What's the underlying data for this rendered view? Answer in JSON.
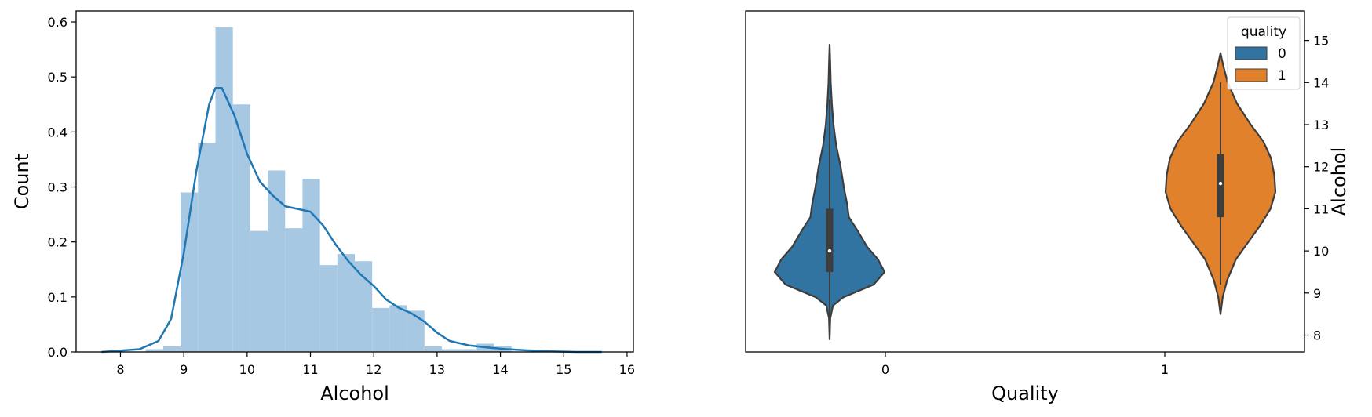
{
  "chart_data": [
    {
      "type": "histogram",
      "xlabel": "Alcohol",
      "ylabel": "Count",
      "xlim": [
        7.3,
        16.1
      ],
      "ylim": [
        0,
        0.62
      ],
      "xticks": [
        8,
        9,
        10,
        11,
        12,
        13,
        14,
        15,
        16
      ],
      "yticks": [
        0.0,
        0.1,
        0.2,
        0.3,
        0.4,
        0.5,
        0.6
      ],
      "bins": {
        "edges": [
          8.4,
          8.675,
          8.95,
          9.225,
          9.5,
          9.775,
          10.05,
          10.325,
          10.6,
          10.875,
          11.15,
          11.425,
          11.7,
          11.975,
          12.25,
          12.525,
          12.8,
          13.075,
          13.35,
          13.625,
          13.9,
          14.175
        ],
        "heights": [
          0.005,
          0.01,
          0.29,
          0.38,
          0.59,
          0.45,
          0.22,
          0.33,
          0.225,
          0.315,
          0.158,
          0.178,
          0.165,
          0.08,
          0.085,
          0.075,
          0.01,
          0.005,
          0.005,
          0.015,
          0.01
        ]
      },
      "kde": {
        "x": [
          7.7,
          8.3,
          8.6,
          8.8,
          9.0,
          9.2,
          9.4,
          9.5,
          9.6,
          9.8,
          10.0,
          10.2,
          10.4,
          10.6,
          10.8,
          11.0,
          11.2,
          11.4,
          11.6,
          11.8,
          12.0,
          12.2,
          12.4,
          12.6,
          12.8,
          13.0,
          13.2,
          13.5,
          13.8,
          14.1,
          14.4,
          14.8,
          15.2,
          15.6
        ],
        "y": [
          0.0,
          0.005,
          0.02,
          0.06,
          0.18,
          0.33,
          0.45,
          0.48,
          0.48,
          0.43,
          0.36,
          0.31,
          0.285,
          0.265,
          0.26,
          0.255,
          0.23,
          0.195,
          0.165,
          0.14,
          0.12,
          0.095,
          0.08,
          0.07,
          0.055,
          0.035,
          0.02,
          0.012,
          0.008,
          0.005,
          0.003,
          0.001,
          0.0,
          0.0
        ]
      },
      "color": "#1f77b4",
      "bar_color": "#a6c8e2"
    },
    {
      "type": "violin",
      "xlabel": "Quality",
      "ylabel": "Alcohol",
      "categories": [
        "0",
        "1"
      ],
      "ylim": [
        7.6,
        15.7
      ],
      "yticks": [
        8,
        9,
        10,
        11,
        12,
        13,
        14,
        15
      ],
      "legend": {
        "title": "quality",
        "position": "top-right",
        "entries": [
          {
            "label": "0",
            "color": "#3274a1"
          },
          {
            "label": "1",
            "color": "#e1812c"
          }
        ]
      },
      "series": [
        {
          "category": "0",
          "color": "#3274a1",
          "min": 7.9,
          "max": 14.9,
          "q1": 9.5,
          "median": 10.0,
          "q3": 11.0,
          "whisker_low": 8.4,
          "whisker_high": 13.6,
          "profile": [
            [
              7.9,
              0.0
            ],
            [
              8.4,
              0.012
            ],
            [
              8.7,
              0.06
            ],
            [
              8.9,
              0.25
            ],
            [
              9.2,
              0.8
            ],
            [
              9.5,
              1.0
            ],
            [
              9.8,
              0.88
            ],
            [
              10.1,
              0.68
            ],
            [
              10.5,
              0.5
            ],
            [
              10.8,
              0.35
            ],
            [
              11.1,
              0.32
            ],
            [
              11.5,
              0.26
            ],
            [
              12.0,
              0.2
            ],
            [
              12.5,
              0.12
            ],
            [
              13.0,
              0.07
            ],
            [
              13.5,
              0.04
            ],
            [
              14.0,
              0.02
            ],
            [
              14.5,
              0.01
            ],
            [
              14.9,
              0.0
            ]
          ]
        },
        {
          "category": "1",
          "color": "#e1812c",
          "min": 8.5,
          "max": 14.7,
          "q1": 10.8,
          "median": 11.6,
          "q3": 12.3,
          "whisker_low": 9.2,
          "whisker_high": 14.0,
          "profile": [
            [
              8.5,
              0.0
            ],
            [
              8.9,
              0.04
            ],
            [
              9.3,
              0.12
            ],
            [
              9.8,
              0.28
            ],
            [
              10.2,
              0.5
            ],
            [
              10.6,
              0.72
            ],
            [
              11.0,
              0.91
            ],
            [
              11.4,
              1.0
            ],
            [
              11.8,
              0.98
            ],
            [
              12.2,
              0.92
            ],
            [
              12.6,
              0.78
            ],
            [
              13.0,
              0.55
            ],
            [
              13.5,
              0.3
            ],
            [
              14.0,
              0.13
            ],
            [
              14.4,
              0.05
            ],
            [
              14.7,
              0.0
            ]
          ]
        }
      ]
    }
  ]
}
